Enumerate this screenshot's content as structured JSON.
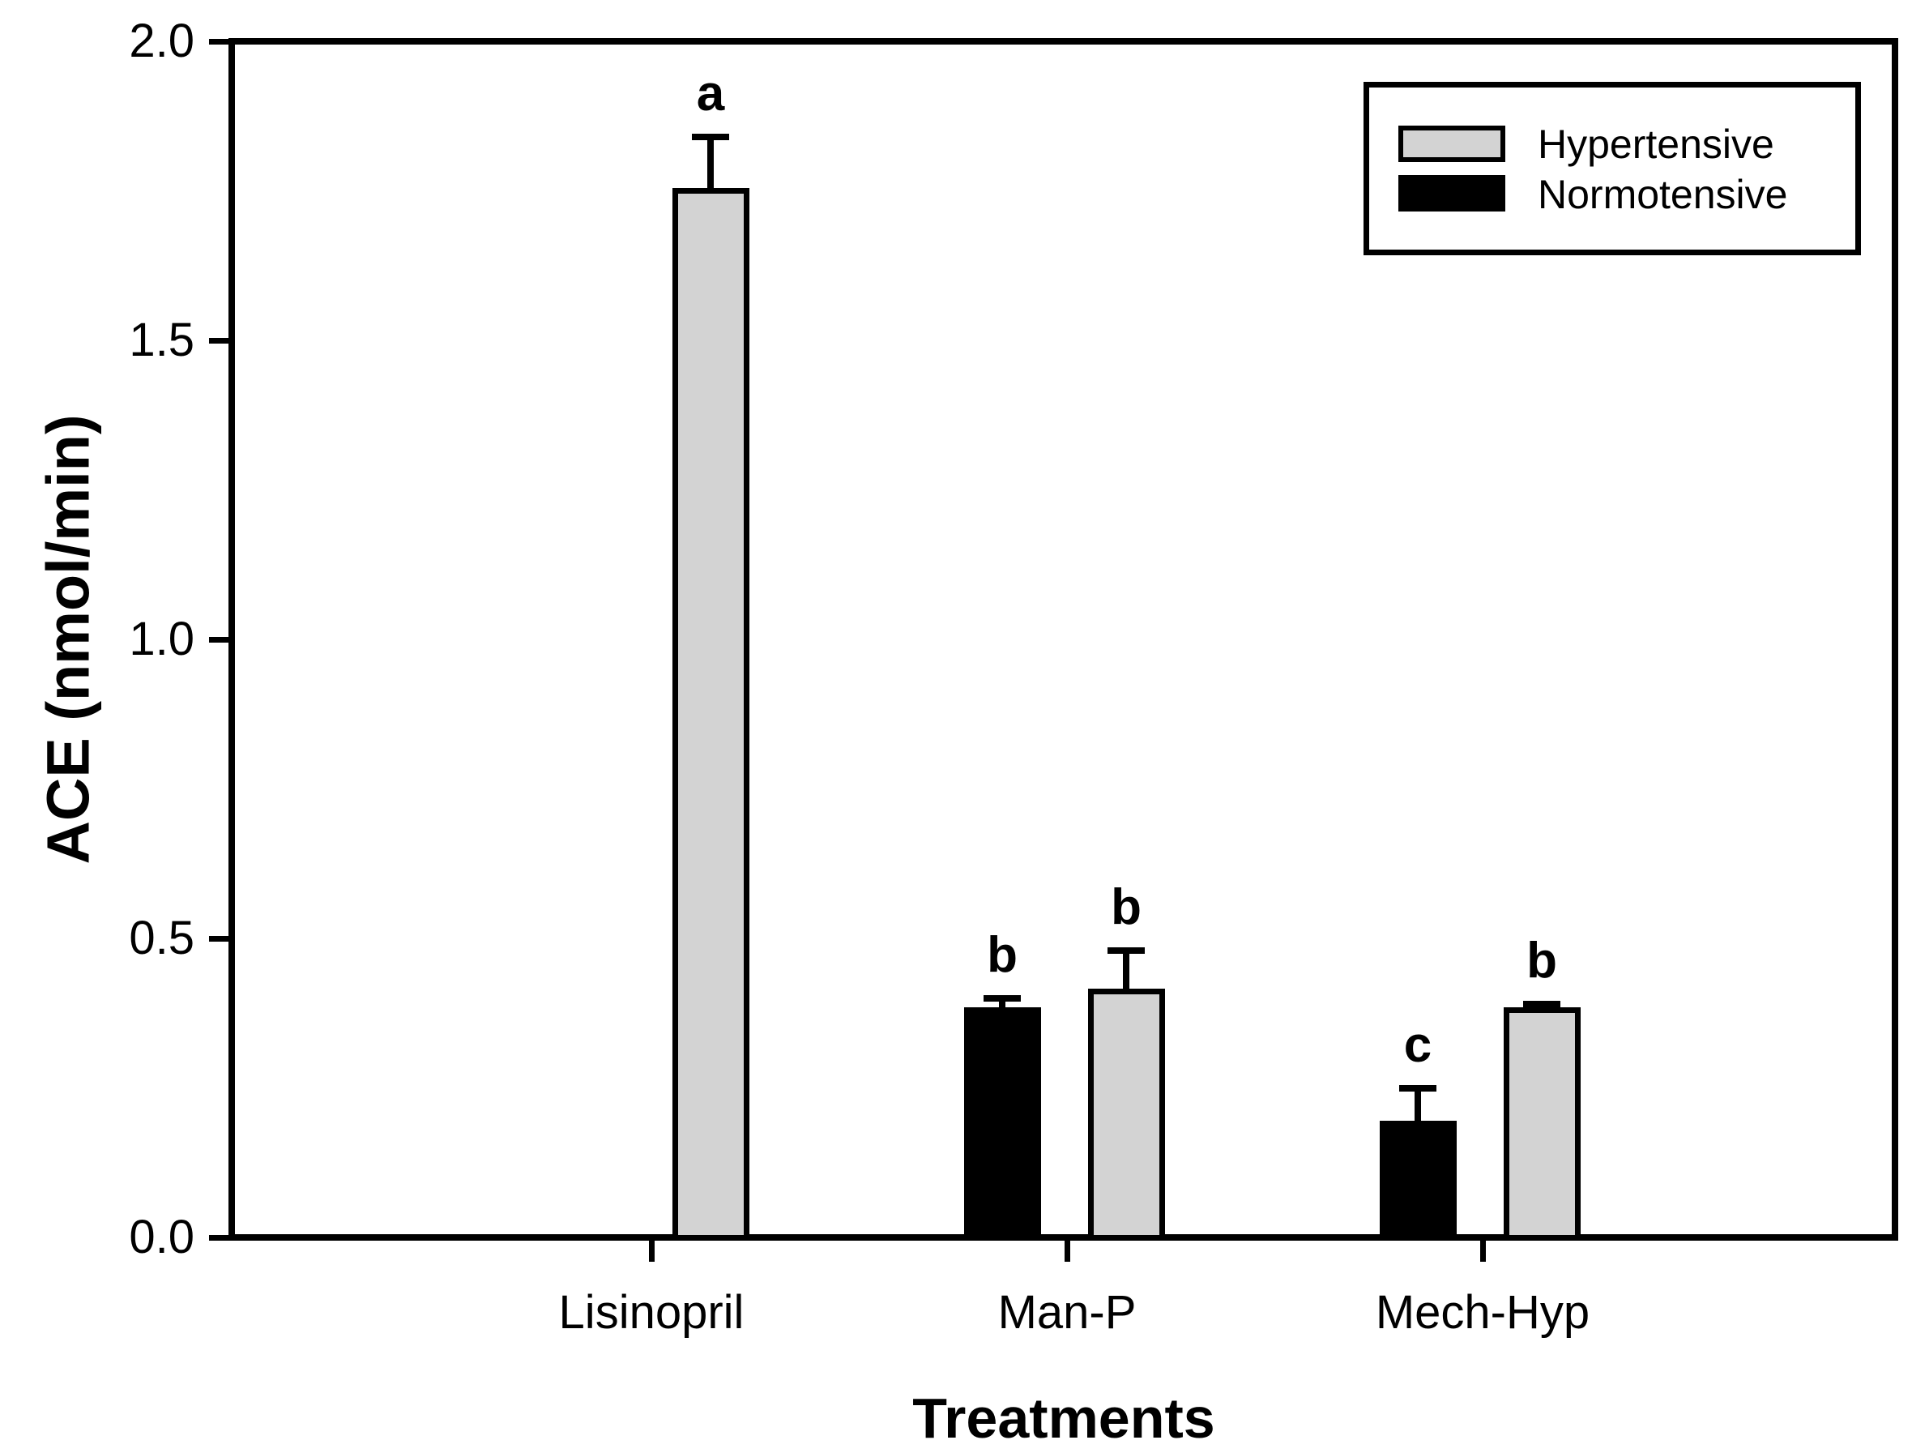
{
  "chart_data": {
    "type": "bar",
    "title": "",
    "xlabel": "Treatments",
    "ylabel": "ACE (nmol/min)",
    "ylim": [
      0.0,
      2.0
    ],
    "yticks": [
      0.0,
      0.5,
      1.0,
      1.5,
      2.0
    ],
    "ytick_labels": [
      "0.0",
      "0.5",
      "1.0",
      "1.5",
      "2.0"
    ],
    "categories": [
      "Lisinopril",
      "Man-P",
      "Mech-Hyp"
    ],
    "series": [
      {
        "name": "Normotensive",
        "color": "#000000",
        "slot": "left",
        "values": [
          null,
          0.38,
          0.19
        ],
        "errors": [
          null,
          0.02,
          0.06
        ],
        "sig_letters": [
          null,
          "b",
          "c"
        ]
      },
      {
        "name": "Hypertensive",
        "color": "#d3d3d3",
        "slot": "right",
        "values": [
          1.75,
          0.41,
          0.38
        ],
        "errors": [
          0.09,
          0.07,
          0.01
        ],
        "sig_letters": [
          "a",
          "b",
          "b"
        ]
      }
    ],
    "legend": {
      "position": "upper-right",
      "entries": [
        {
          "label": "Hypertensive",
          "color": "#d3d3d3"
        },
        {
          "label": "Normotensive",
          "color": "#000000"
        }
      ]
    },
    "error_bar_direction": "upper",
    "grid": false,
    "background": "#ffffff"
  }
}
